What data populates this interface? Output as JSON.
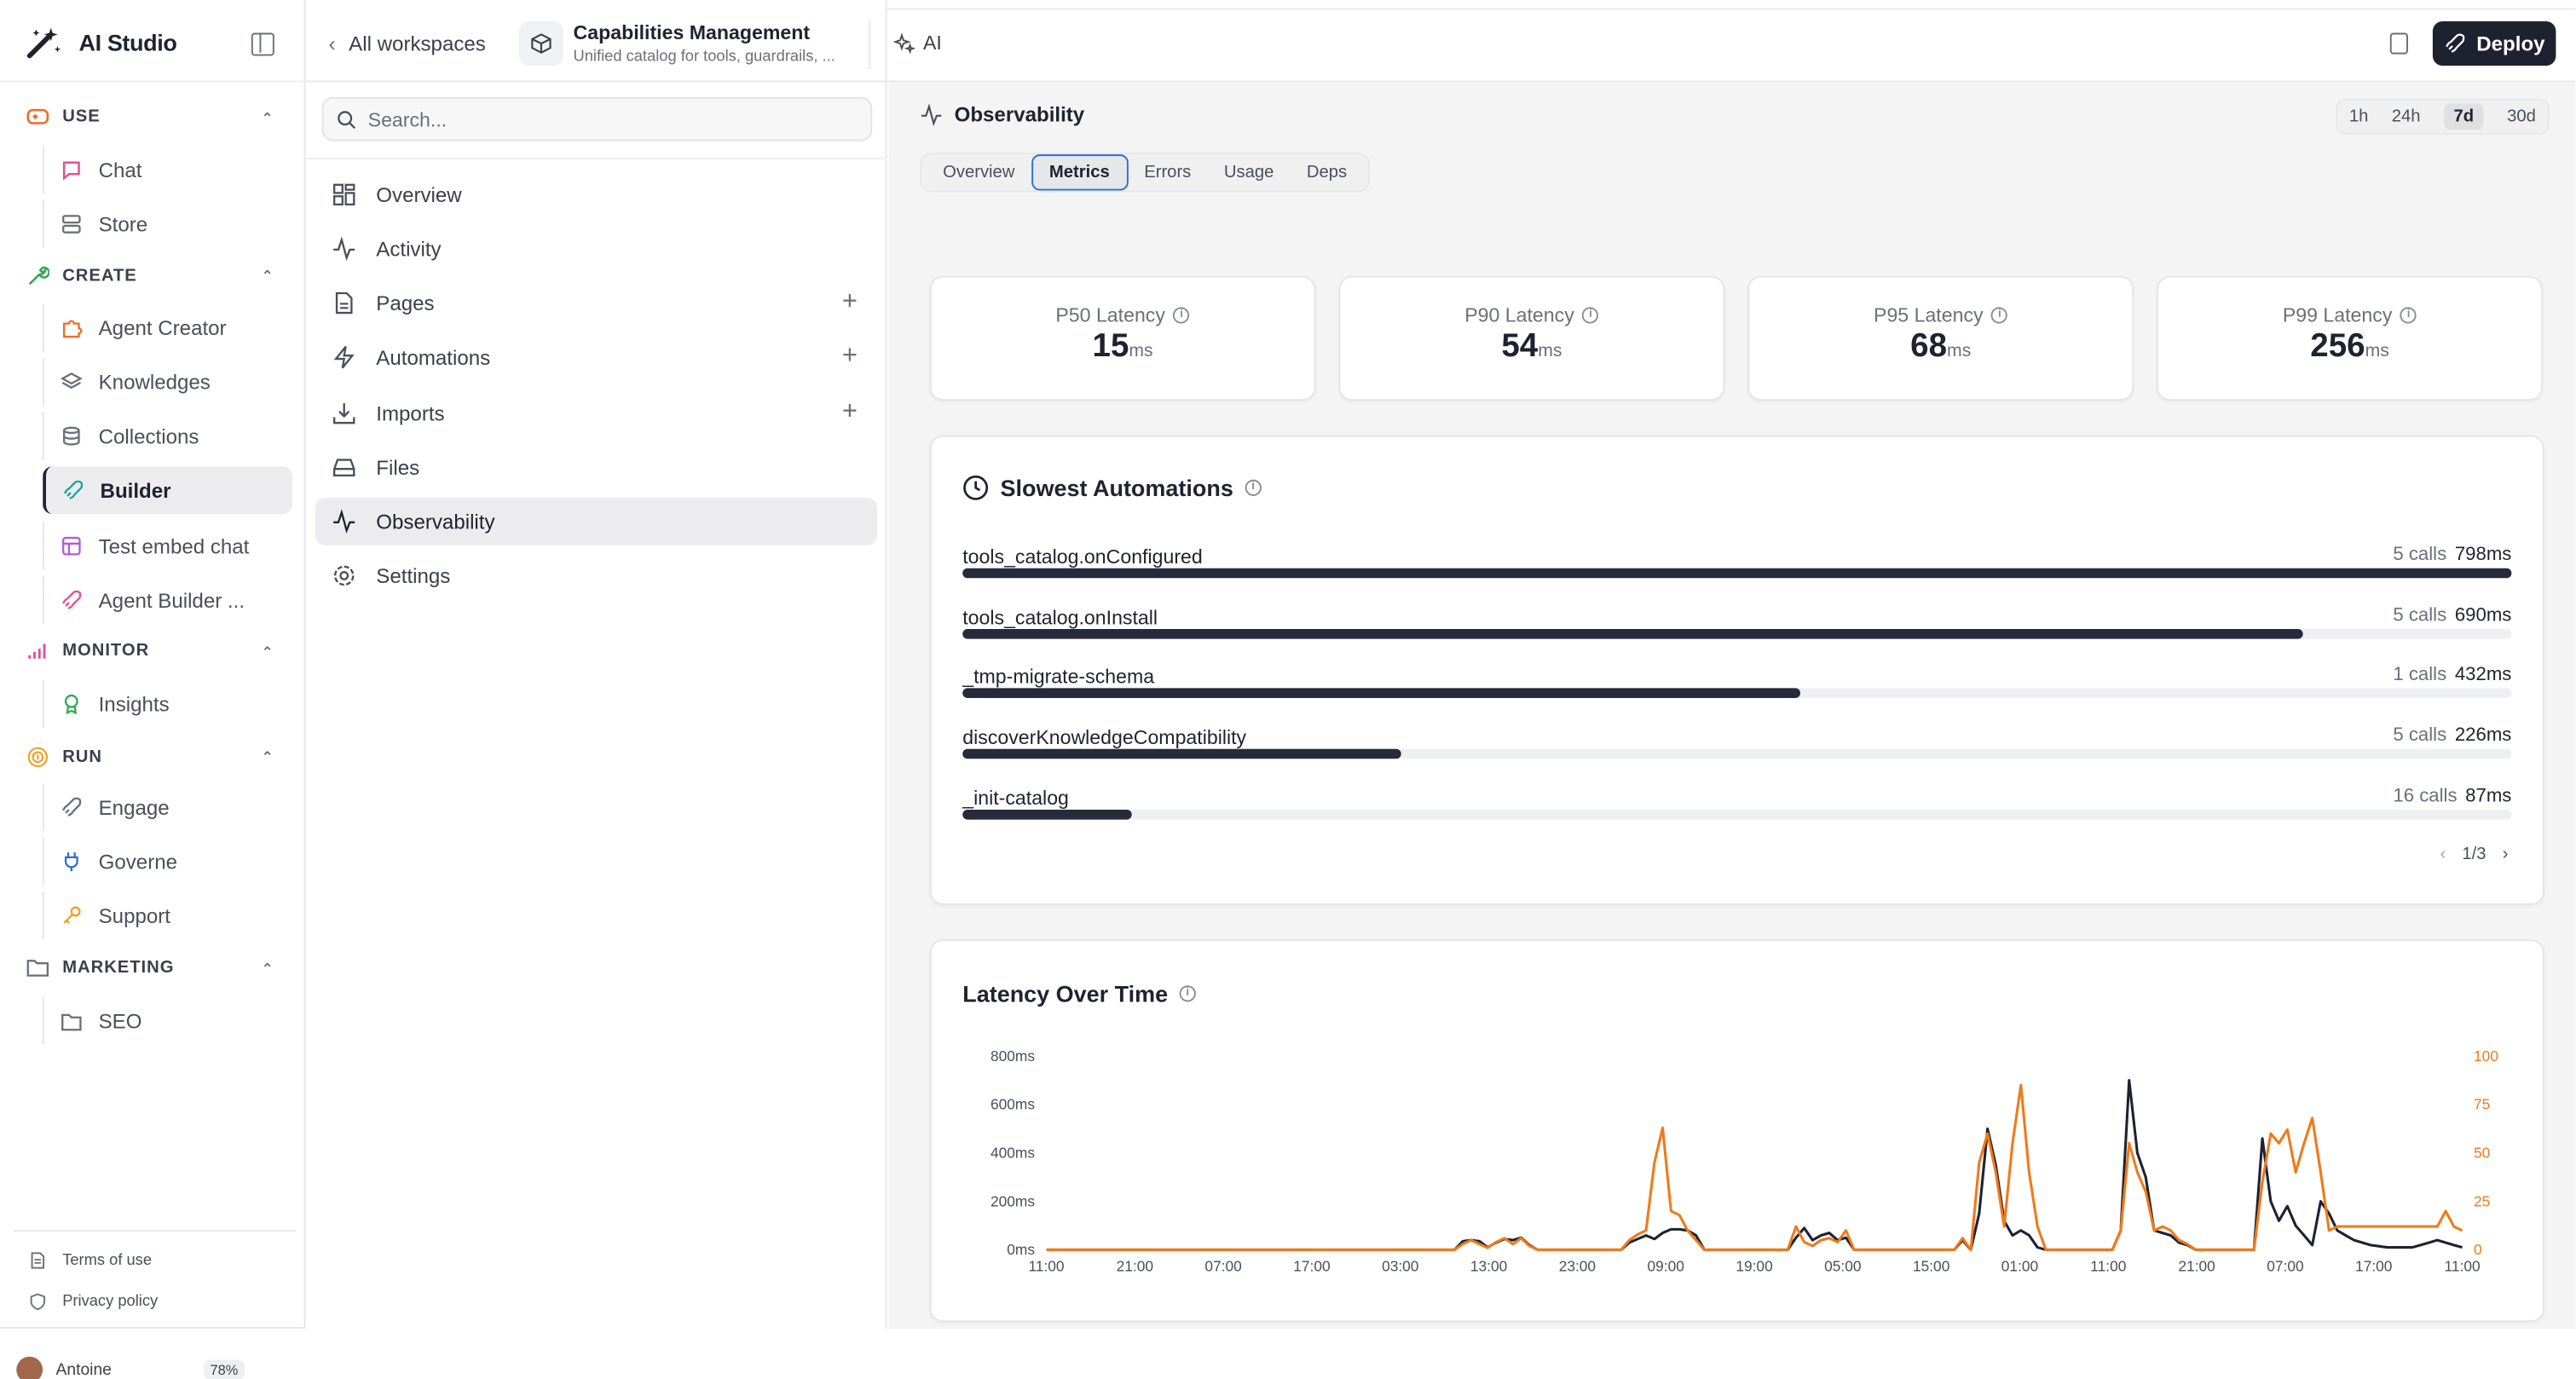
{
  "app": {
    "title": "AI Studio"
  },
  "sidebar": {
    "sections": [
      {
        "label": "USE",
        "color": "#f06b2a",
        "items": [
          {
            "label": "Chat",
            "color": "#e0509a"
          },
          {
            "label": "Store",
            "color": "#6b6f7a"
          }
        ]
      },
      {
        "label": "CREATE",
        "color": "#2fa84f",
        "items": [
          {
            "label": "Agent Creator",
            "color": "#f06b2a"
          },
          {
            "label": "Knowledges",
            "color": "#6b6f7a"
          },
          {
            "label": "Collections",
            "color": "#6b6f7a"
          },
          {
            "label": "Builder",
            "color": "#1aa39b"
          },
          {
            "label": "Test embed chat",
            "color": "#b05bd6"
          },
          {
            "label": "Agent Builder ...",
            "color": "#e0509a"
          }
        ]
      },
      {
        "label": "MONITOR",
        "color": "#e0509a",
        "items": [
          {
            "label": "Insights",
            "color": "#2fa84f"
          }
        ]
      },
      {
        "label": "RUN",
        "color": "#f0a020",
        "items": [
          {
            "label": "Engage",
            "color": "#6b6f7a"
          },
          {
            "label": "Governe",
            "color": "#2f6fd6"
          },
          {
            "label": "Support",
            "color": "#f0a020"
          }
        ]
      },
      {
        "label": "MARKETING",
        "color": "#6b6f7a",
        "items": [
          {
            "label": "SEO",
            "color": "#6b6f7a"
          }
        ]
      }
    ],
    "footer": {
      "terms": "Terms of use",
      "privacy": "Privacy policy"
    },
    "user": {
      "name": "Antoine",
      "usage": "78%"
    }
  },
  "header": {
    "back_label": "All workspaces",
    "workspace_title": "Capabilities Management",
    "workspace_subtitle": "Unified catalog for tools, guardrails, ...",
    "ai_label": "AI",
    "deploy_label": "Deploy"
  },
  "panel": {
    "search_placeholder": "Search...",
    "nav": [
      "Overview",
      "Activity",
      "Pages",
      "Automations",
      "Imports",
      "Files",
      "Observability",
      "Settings"
    ]
  },
  "observability": {
    "title": "Observability",
    "ranges": [
      "1h",
      "24h",
      "7d",
      "30d"
    ],
    "active_range": "7d",
    "tabs": [
      "Overview",
      "Metrics",
      "Errors",
      "Usage",
      "Deps"
    ],
    "active_tab": "Metrics",
    "stats": [
      {
        "label": "P50 Latency",
        "value": "15",
        "unit": "ms"
      },
      {
        "label": "P90 Latency",
        "value": "54",
        "unit": "ms"
      },
      {
        "label": "P95 Latency",
        "value": "68",
        "unit": "ms"
      },
      {
        "label": "P99 Latency",
        "value": "256",
        "unit": "ms"
      }
    ],
    "slowest": {
      "title": "Slowest Automations",
      "rows": [
        {
          "name": "tools_catalog.onConfigured",
          "calls": "5 calls",
          "latency": "798ms",
          "ratio": 1.0
        },
        {
          "name": "tools_catalog.onInstall",
          "calls": "5 calls",
          "latency": "690ms",
          "ratio": 0.865
        },
        {
          "name": "_tmp-migrate-schema",
          "calls": "1 calls",
          "latency": "432ms",
          "ratio": 0.541
        },
        {
          "name": "discoverKnowledgeCompatibility",
          "calls": "5 calls",
          "latency": "226ms",
          "ratio": 0.283
        },
        {
          "name": "_init-catalog",
          "calls": "16 calls",
          "latency": "87ms",
          "ratio": 0.109
        }
      ],
      "pager": "1/3"
    },
    "latency_chart": {
      "title": "Latency Over Time"
    }
  },
  "chart_data": {
    "type": "line",
    "title": "Latency Over Time",
    "x_tick_labels": [
      "11:00",
      "21:00",
      "07:00",
      "17:00",
      "03:00",
      "13:00",
      "23:00",
      "09:00",
      "19:00",
      "05:00",
      "15:00",
      "01:00",
      "11:00",
      "21:00",
      "07:00",
      "17:00",
      "11:00"
    ],
    "y_left": {
      "ticks": [
        "0ms",
        "200ms",
        "400ms",
        "600ms",
        "800ms"
      ],
      "range": [
        0,
        800
      ]
    },
    "y_right": {
      "ticks": [
        "0",
        "25",
        "50",
        "75",
        "100"
      ],
      "range": [
        0,
        100
      ]
    },
    "series": [
      {
        "color": "#1e2230",
        "axis": "left",
        "values": [
          0,
          0,
          0,
          0,
          0,
          0,
          0,
          0,
          0,
          0,
          0,
          0,
          0,
          0,
          0,
          0,
          0,
          0,
          0,
          0,
          0,
          0,
          0,
          0,
          0,
          0,
          0,
          0,
          0,
          0,
          0,
          0,
          0,
          0,
          0,
          0,
          0,
          0,
          0,
          0,
          0,
          0,
          0,
          0,
          0,
          0,
          0,
          0,
          0,
          0,
          35,
          40,
          35,
          10,
          30,
          45,
          40,
          50,
          20,
          0,
          0,
          0,
          0,
          0,
          0,
          0,
          0,
          0,
          0,
          0,
          30,
          45,
          60,
          45,
          70,
          85,
          85,
          80,
          60,
          0,
          0,
          0,
          0,
          0,
          0,
          0,
          0,
          0,
          0,
          0,
          50,
          90,
          40,
          60,
          70,
          40,
          50,
          0,
          0,
          0,
          0,
          0,
          0,
          0,
          0,
          0,
          0,
          0,
          0,
          0,
          40,
          0,
          150,
          500,
          350,
          120,
          60,
          80,
          60,
          10,
          0,
          0,
          0,
          0,
          0,
          0,
          0,
          0,
          0,
          80,
          700,
          400,
          300,
          80,
          70,
          60,
          30,
          20,
          0,
          0,
          0,
          0,
          0,
          0,
          0,
          0,
          460,
          200,
          120,
          180,
          100,
          60,
          20,
          200,
          150,
          80,
          60,
          40,
          30,
          20,
          15,
          10,
          10,
          10,
          10,
          20,
          30,
          40,
          30,
          20,
          10
        ]
      },
      {
        "color": "#f07a1a",
        "axis": "right",
        "values": [
          0,
          0,
          0,
          0,
          0,
          0,
          0,
          0,
          0,
          0,
          0,
          0,
          0,
          0,
          0,
          0,
          0,
          0,
          0,
          0,
          0,
          0,
          0,
          0,
          0,
          0,
          0,
          0,
          0,
          0,
          0,
          0,
          0,
          0,
          0,
          0,
          0,
          0,
          0,
          0,
          0,
          0,
          0,
          0,
          0,
          0,
          0,
          0,
          0,
          0,
          3,
          5,
          3,
          1,
          4,
          6,
          3,
          6,
          2,
          0,
          0,
          0,
          0,
          0,
          0,
          0,
          0,
          0,
          0,
          0,
          5,
          8,
          10,
          45,
          63,
          20,
          18,
          10,
          5,
          0,
          0,
          0,
          0,
          0,
          0,
          0,
          0,
          0,
          0,
          0,
          12,
          4,
          2,
          5,
          6,
          4,
          10,
          0,
          0,
          0,
          0,
          0,
          0,
          0,
          0,
          0,
          0,
          0,
          0,
          0,
          6,
          0,
          45,
          60,
          40,
          12,
          55,
          85,
          40,
          12,
          0,
          0,
          0,
          0,
          0,
          0,
          0,
          0,
          0,
          10,
          55,
          40,
          30,
          10,
          12,
          10,
          5,
          3,
          0,
          0,
          0,
          0,
          0,
          0,
          0,
          0,
          35,
          60,
          55,
          62,
          40,
          55,
          68,
          40,
          10,
          12,
          12,
          12,
          12,
          12,
          12,
          12,
          12,
          12,
          12,
          12,
          12,
          12,
          20,
          12,
          10
        ]
      }
    ],
    "grid": false,
    "legend": "none"
  }
}
